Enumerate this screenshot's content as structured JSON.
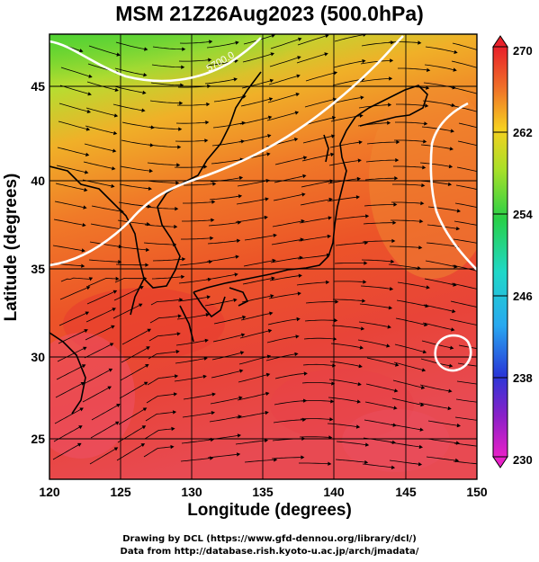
{
  "title": "MSM 21Z26Aug2023 (500.0hPa)",
  "xlabel": "Longitude (degrees)",
  "ylabel": "Latitude  (degrees)",
  "credit_line1": "Drawing by DCL (https://www.gfd-dennou.org/library/dcl/)",
  "credit_line2": "Data from http://database.rish.kyoto-u.ac.jp/arch/jmadata/",
  "x_ticks": [
    "120",
    "125",
    "130",
    "135",
    "140",
    "145",
    "150"
  ],
  "y_ticks": [
    "25",
    "30",
    "35",
    "40",
    "45"
  ],
  "colorbar_ticks": [
    "270",
    "262",
    "254",
    "246",
    "238",
    "230"
  ],
  "contour_label": "5700.0",
  "colors": {
    "high": "#e83a2a",
    "mid": "#f08a28",
    "low": "#3fd23a",
    "contour": "#ffffff"
  },
  "chart_data": {
    "type": "heatmap",
    "title": "MSM 21Z26Aug2023 (500.0hPa)",
    "xlabel": "Longitude (degrees)",
    "ylabel": "Latitude  (degrees)",
    "xlim": [
      120,
      150
    ],
    "ylim": [
      22.4,
      47.6
    ],
    "colorbar_range": [
      230,
      270
    ],
    "colorbar_ticks": [
      270,
      262,
      254,
      246,
      238,
      230
    ]
  }
}
